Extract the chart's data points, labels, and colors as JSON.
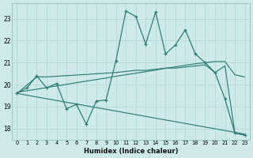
{
  "xlabel": "Humidex (Indice chaleur)",
  "ylabel": "",
  "xlim": [
    -0.5,
    23.5
  ],
  "ylim": [
    17.5,
    23.7
  ],
  "xticks": [
    0,
    1,
    2,
    3,
    4,
    5,
    6,
    7,
    8,
    9,
    10,
    11,
    12,
    13,
    14,
    15,
    16,
    17,
    18,
    19,
    20,
    21,
    22,
    23
  ],
  "yticks": [
    18,
    19,
    20,
    21,
    22,
    23
  ],
  "bg_color": "#ceeae8",
  "grid_color": "#b0d8d5",
  "line_color": "#2d7d74",
  "line1_x": [
    0,
    1,
    2,
    3,
    4,
    5,
    6,
    7,
    8,
    9,
    10,
    11,
    12,
    13,
    14,
    15,
    16,
    17,
    18,
    19,
    20,
    21,
    22,
    23
  ],
  "line1_y": [
    19.6,
    19.85,
    20.4,
    19.85,
    20.05,
    18.9,
    19.1,
    18.2,
    19.25,
    19.3,
    21.1,
    23.35,
    23.1,
    21.85,
    23.3,
    21.4,
    21.8,
    22.5,
    21.4,
    21.0,
    20.55,
    19.35,
    17.8,
    17.7
  ],
  "line2_x": [
    0,
    2,
    3,
    10,
    11,
    12,
    13,
    14,
    15,
    16,
    17,
    18,
    19,
    20,
    21,
    22,
    23
  ],
  "line2_y": [
    19.6,
    20.35,
    20.35,
    20.55,
    20.6,
    20.65,
    20.65,
    20.7,
    20.75,
    20.75,
    20.8,
    20.85,
    20.9,
    20.55,
    20.85,
    17.8,
    17.7
  ],
  "line3_x": [
    0,
    1,
    2,
    3,
    4,
    5,
    6,
    7,
    8,
    9,
    10,
    11,
    12,
    13,
    14,
    15,
    16,
    17,
    18,
    19,
    20,
    21,
    22,
    23
  ],
  "line3_y": [
    19.65,
    19.72,
    19.79,
    19.87,
    19.94,
    20.01,
    20.09,
    20.16,
    20.23,
    20.3,
    20.38,
    20.45,
    20.52,
    20.59,
    20.66,
    20.74,
    20.81,
    20.88,
    20.95,
    21.0,
    21.05,
    21.05,
    20.45,
    20.35
  ],
  "line4_x": [
    0,
    23
  ],
  "line4_y": [
    19.6,
    17.75
  ]
}
